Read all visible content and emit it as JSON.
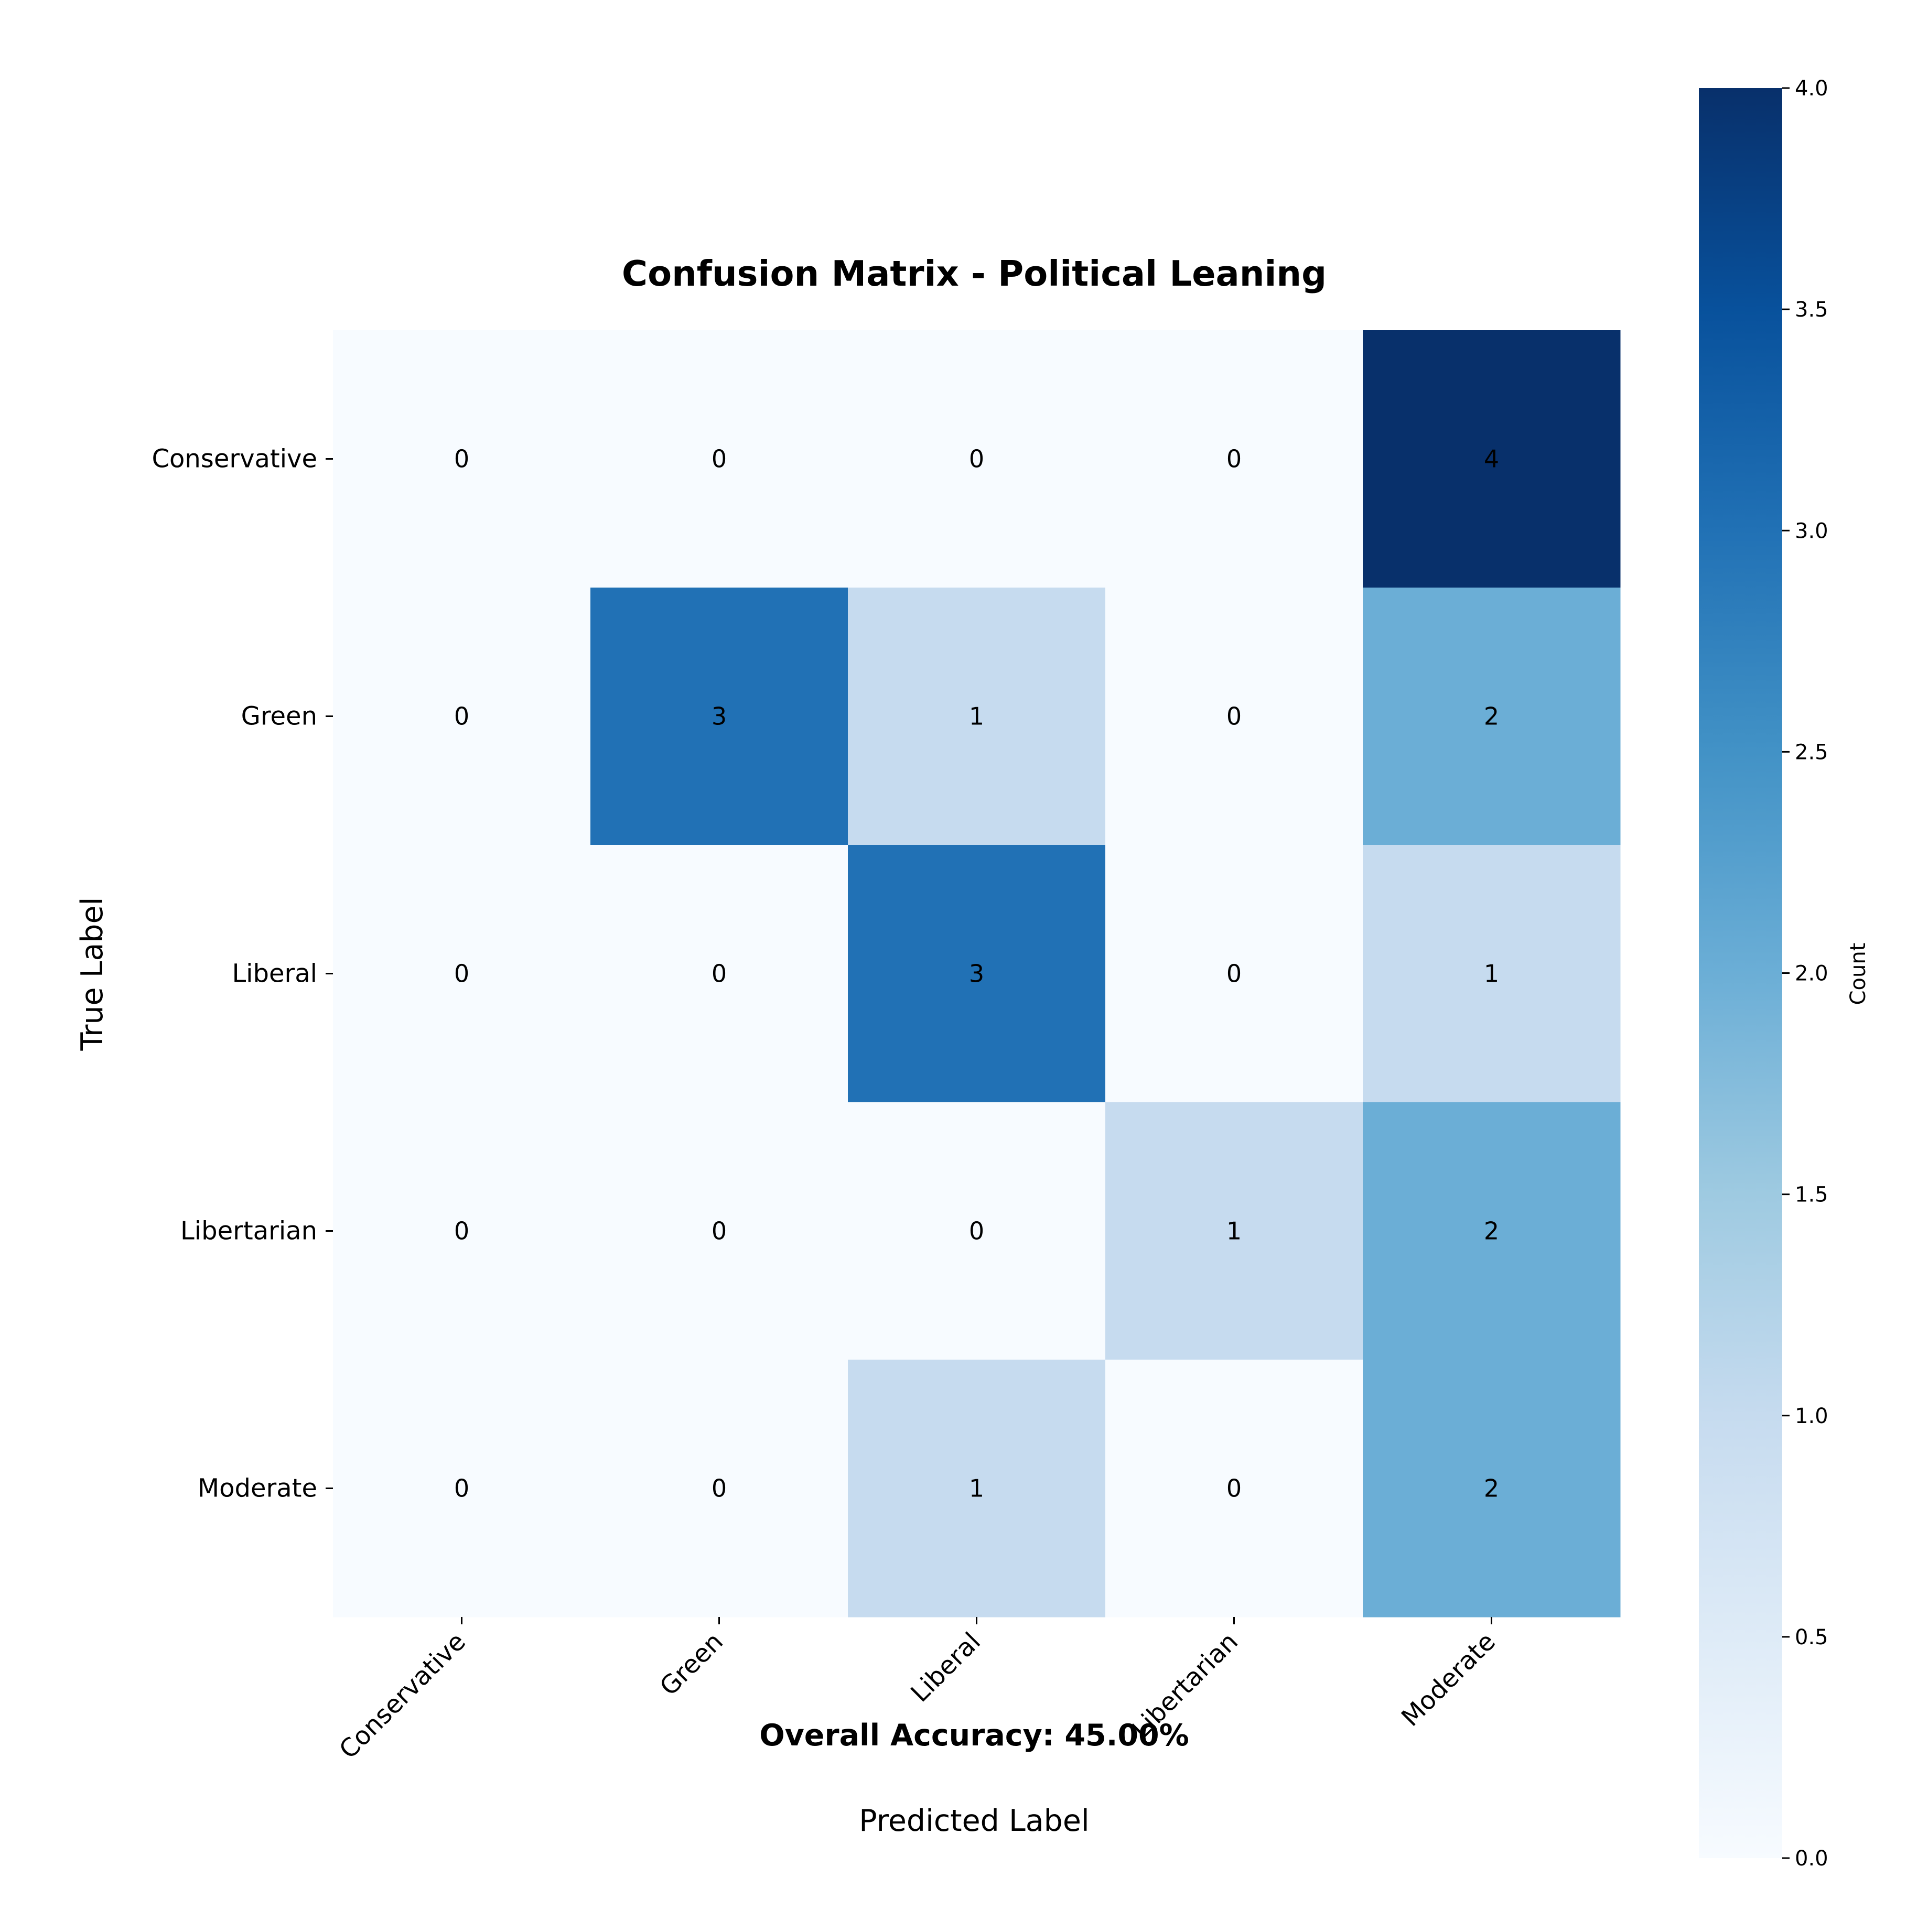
{
  "chart_data": {
    "type": "heatmap",
    "title": "Confusion Matrix - Political Leaning",
    "xlabel": "Predicted Label",
    "ylabel": "True Label",
    "x_categories": [
      "Conservative",
      "Green",
      "Liberal",
      "Libertarian",
      "Moderate"
    ],
    "y_categories": [
      "Conservative",
      "Green",
      "Liberal",
      "Libertarian",
      "Moderate"
    ],
    "matrix": [
      [
        0,
        0,
        0,
        0,
        4
      ],
      [
        0,
        3,
        1,
        0,
        2
      ],
      [
        0,
        0,
        3,
        0,
        1
      ],
      [
        0,
        0,
        0,
        1,
        2
      ],
      [
        0,
        0,
        1,
        0,
        2
      ]
    ],
    "colormap": "Blues",
    "colorbar": {
      "label": "Count",
      "range": [
        0,
        4
      ],
      "ticks": [
        "0.0",
        "0.5",
        "1.0",
        "1.5",
        "2.0",
        "2.5",
        "3.0",
        "3.5",
        "4.0"
      ]
    },
    "annotation": "Overall Accuracy: 45.00%",
    "grid": false,
    "colors": {
      "cell_0": "#f7fbff",
      "cell_1": "#c6dbef",
      "cell_2": "#6baed6",
      "cell_3": "#2171b5",
      "cell_4": "#08306b",
      "text_dark": "#262626",
      "text_light": "#ffffff"
    }
  }
}
